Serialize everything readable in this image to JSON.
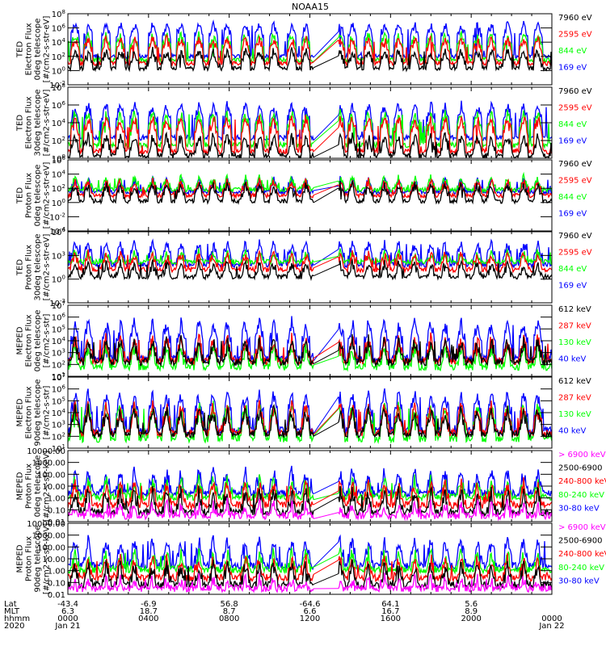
{
  "chart_data": {
    "type": "line",
    "title": "NOAA15",
    "x_axis": {
      "range_hours": [
        0,
        24
      ],
      "major_ticks_hours": [
        0,
        4,
        8,
        12,
        16,
        20,
        24
      ],
      "rows": [
        {
          "label": "Lat",
          "values": [
            "-43.4",
            "-6.9",
            "56.8",
            "-64.6",
            "64.1",
            "5.6",
            ""
          ]
        },
        {
          "label": "MLT",
          "values": [
            "6.3",
            "18.7",
            "8.7",
            "6.6",
            "16.7",
            "8.9",
            ""
          ]
        },
        {
          "label": "hhmm",
          "values": [
            "0000",
            "0400",
            "0800",
            "1200",
            "1600",
            "2000",
            "0000"
          ]
        },
        {
          "label": "2020",
          "values": [
            "Jan 21",
            "",
            "",
            "",
            "",
            "",
            "Jan 22"
          ]
        }
      ],
      "data_gap_hours": [
        12.2,
        13.4
      ]
    },
    "panels": [
      {
        "ylabel": [
          "TED",
          "Electron Flux",
          "0deg telescope",
          "[#/cm2-s-str-eV]"
        ],
        "scale": "log",
        "ylim_exp": [
          -2,
          8
        ],
        "ytick_labels": [
          "10^8",
          "10^6",
          "10^4",
          "10^2",
          "10^0",
          "10^-2"
        ],
        "ytick_exps": [
          8,
          6,
          4,
          2,
          0,
          -2
        ],
        "series": [
          {
            "name": "7960 eV",
            "color": "#000000",
            "base_exp": 0.3,
            "peak_exp": 2.8
          },
          {
            "name": "2595 eV",
            "color": "#ff0000",
            "base_exp": 1.0,
            "peak_exp": 4.5
          },
          {
            "name": "844 eV",
            "color": "#00ff00",
            "base_exp": 1.5,
            "peak_exp": 5.0
          },
          {
            "name": "169 eV",
            "color": "#0000ff",
            "base_exp": 2.0,
            "peak_exp": 6.5
          }
        ]
      },
      {
        "ylabel": [
          "TED",
          "Electron Flux",
          "30deg telescope",
          "[#/cm2-s-str-eV]"
        ],
        "scale": "log",
        "ylim_exp": [
          0,
          8
        ],
        "ytick_labels": [
          "10^8",
          "10^6",
          "10^4",
          "10^2",
          "10^0"
        ],
        "ytick_exps": [
          8,
          6,
          4,
          2,
          0
        ],
        "series": [
          {
            "name": "7960 eV",
            "color": "#000000",
            "base_exp": 0.3,
            "peak_exp": 2.5
          },
          {
            "name": "2595 eV",
            "color": "#ff0000",
            "base_exp": 0.8,
            "peak_exp": 4.5
          },
          {
            "name": "844 eV",
            "color": "#00ff00",
            "base_exp": 1.5,
            "peak_exp": 5.0
          },
          {
            "name": "169 eV",
            "color": "#0000ff",
            "base_exp": 2.3,
            "peak_exp": 6.0
          }
        ]
      },
      {
        "ylabel": [
          "TED",
          "Proton Flux",
          "0deg telescope",
          "[#/cm2-s-str-eV]"
        ],
        "scale": "log",
        "ylim_exp": [
          -4,
          6
        ],
        "ytick_labels": [
          "10^6",
          "10^4",
          "10^2",
          "10^0",
          "10^-2",
          "10^-4"
        ],
        "ytick_exps": [
          6,
          4,
          2,
          0,
          -2,
          -4
        ],
        "series": [
          {
            "name": "7960 eV",
            "color": "#000000",
            "base_exp": 0.2,
            "peak_exp": 2.5
          },
          {
            "name": "2595 eV",
            "color": "#ff0000",
            "base_exp": 1.0,
            "peak_exp": 3.0
          },
          {
            "name": "844 eV",
            "color": "#00ff00",
            "base_exp": 1.8,
            "peak_exp": 3.5
          },
          {
            "name": "169 eV",
            "color": "#0000ff",
            "base_exp": 1.5,
            "peak_exp": 3.2
          }
        ]
      },
      {
        "ylabel": [
          "TED",
          "Proton Flux",
          "30deg telescope",
          "[#/cm2-s-str-eV]"
        ],
        "scale": "log",
        "ylim_exp": [
          -3,
          6
        ],
        "ytick_labels": [
          "10^6",
          "10^3",
          "10^0",
          "10^-3"
        ],
        "ytick_exps": [
          6,
          3,
          0,
          -3
        ],
        "series": [
          {
            "name": "7960 eV",
            "color": "#000000",
            "base_exp": 0.3,
            "peak_exp": 2.0
          },
          {
            "name": "2595 eV",
            "color": "#ff0000",
            "base_exp": 1.2,
            "peak_exp": 3.2
          },
          {
            "name": "844 eV",
            "color": "#00ff00",
            "base_exp": 2.2,
            "peak_exp": 3.4
          },
          {
            "name": "169 eV",
            "color": "#0000ff",
            "base_exp": 1.8,
            "peak_exp": 4.5
          }
        ]
      },
      {
        "ylabel": [
          "MEPED",
          "Electron Flux",
          "0deg telescope",
          "[#/cm2-s-str]"
        ],
        "scale": "log",
        "ylim_exp": [
          1,
          7
        ],
        "ytick_labels": [
          "10^7",
          "10^6",
          "10^5",
          "10^4",
          "10^3",
          "10^2",
          "10^1"
        ],
        "ytick_exps": [
          7,
          6,
          5,
          4,
          3,
          2,
          1
        ],
        "series": [
          {
            "name": "612 keV",
            "color": "#000000",
            "base_exp": 2.2,
            "peak_exp": 4.0
          },
          {
            "name": "287 keV",
            "color": "#ff0000",
            "base_exp": 2.3,
            "peak_exp": 4.2
          },
          {
            "name": "130 keV",
            "color": "#00ff00",
            "base_exp": 1.8,
            "peak_exp": 3.5
          },
          {
            "name": "40 keV",
            "color": "#0000ff",
            "base_exp": 2.5,
            "peak_exp": 5.5
          }
        ]
      },
      {
        "ylabel": [
          "MEPED",
          "Electron Flux",
          "90deg telescope",
          "[#/cm2-s-str]"
        ],
        "scale": "log",
        "ylim_exp": [
          1,
          7
        ],
        "ytick_labels": [
          "10^7",
          "10^6",
          "10^5",
          "10^4",
          "10^3",
          "10^2",
          "10^1"
        ],
        "ytick_exps": [
          7,
          6,
          5,
          4,
          3,
          2,
          1
        ],
        "series": [
          {
            "name": "612 keV",
            "color": "#000000",
            "base_exp": 2.2,
            "peak_exp": 4.2
          },
          {
            "name": "287 keV",
            "color": "#ff0000",
            "base_exp": 2.3,
            "peak_exp": 4.5
          },
          {
            "name": "130 keV",
            "color": "#00ff00",
            "base_exp": 1.8,
            "peak_exp": 4.5
          },
          {
            "name": "40 keV",
            "color": "#0000ff",
            "base_exp": 2.5,
            "peak_exp": 5.5
          }
        ]
      },
      {
        "ylabel": [
          "MEPED",
          "Proton Flux",
          "0deg telescope",
          "[#/cm2-s-str-keV]"
        ],
        "scale": "log",
        "ylim_exp": [
          -2,
          4
        ],
        "ytick_labels": [
          "10000.00",
          "1000.00",
          "100.00",
          "10.00",
          "1.00",
          "0.10",
          "0.01"
        ],
        "ytick_exps": [
          4,
          3,
          2,
          1,
          0,
          -1,
          -2
        ],
        "series": [
          {
            "name": "> 6900 keV",
            "color": "#ff00ff",
            "base_exp": -1.5,
            "peak_exp": -0.5
          },
          {
            "name": "2500-6900",
            "color": "#000000",
            "base_exp": -1.2,
            "peak_exp": 0.5
          },
          {
            "name": "240-800 keV",
            "color": "#ff0000",
            "base_exp": -0.6,
            "peak_exp": 1.2
          },
          {
            "name": "80-240 keV",
            "color": "#00ff00",
            "base_exp": 0.1,
            "peak_exp": 1.5
          },
          {
            "name": "30-80 keV",
            "color": "#0000ff",
            "base_exp": 0.4,
            "peak_exp": 2.2
          }
        ]
      },
      {
        "ylabel": [
          "MEPED",
          "Proton Flux",
          "90deg telescope",
          "[#/cm2-s-str-keV]"
        ],
        "scale": "log",
        "ylim_exp": [
          -2,
          4
        ],
        "ytick_labels": [
          "10000.00",
          "1000.00",
          "100.00",
          "10.00",
          "1.00",
          "0.10",
          "0.01"
        ],
        "ytick_exps": [
          4,
          3,
          2,
          1,
          0,
          -1,
          -2
        ],
        "series": [
          {
            "name": "> 6900 keV",
            "color": "#ff00ff",
            "base_exp": -1.5,
            "peak_exp": -0.7
          },
          {
            "name": "2500-6900",
            "color": "#000000",
            "base_exp": -1.2,
            "peak_exp": 0.5
          },
          {
            "name": "240-800 keV",
            "color": "#ff0000",
            "base_exp": -0.6,
            "peak_exp": 1.0
          },
          {
            "name": "80-240 keV",
            "color": "#00ff00",
            "base_exp": 0.1,
            "peak_exp": 1.5
          },
          {
            "name": "30-80 keV",
            "color": "#0000ff",
            "base_exp": 0.4,
            "peak_exp": 2.5
          }
        ]
      }
    ],
    "pass_peak_hours": [
      0.35,
      1.0,
      1.9,
      2.6,
      3.3,
      4.2,
      4.9,
      5.6,
      6.5,
      7.2,
      7.9,
      8.8,
      9.5,
      10.2,
      11.1,
      11.8,
      13.5,
      14.1,
      14.9,
      15.7,
      16.4,
      17.2,
      18.0,
      18.7,
      19.5,
      20.3,
      21.0,
      21.8,
      22.6,
      23.3
    ]
  }
}
